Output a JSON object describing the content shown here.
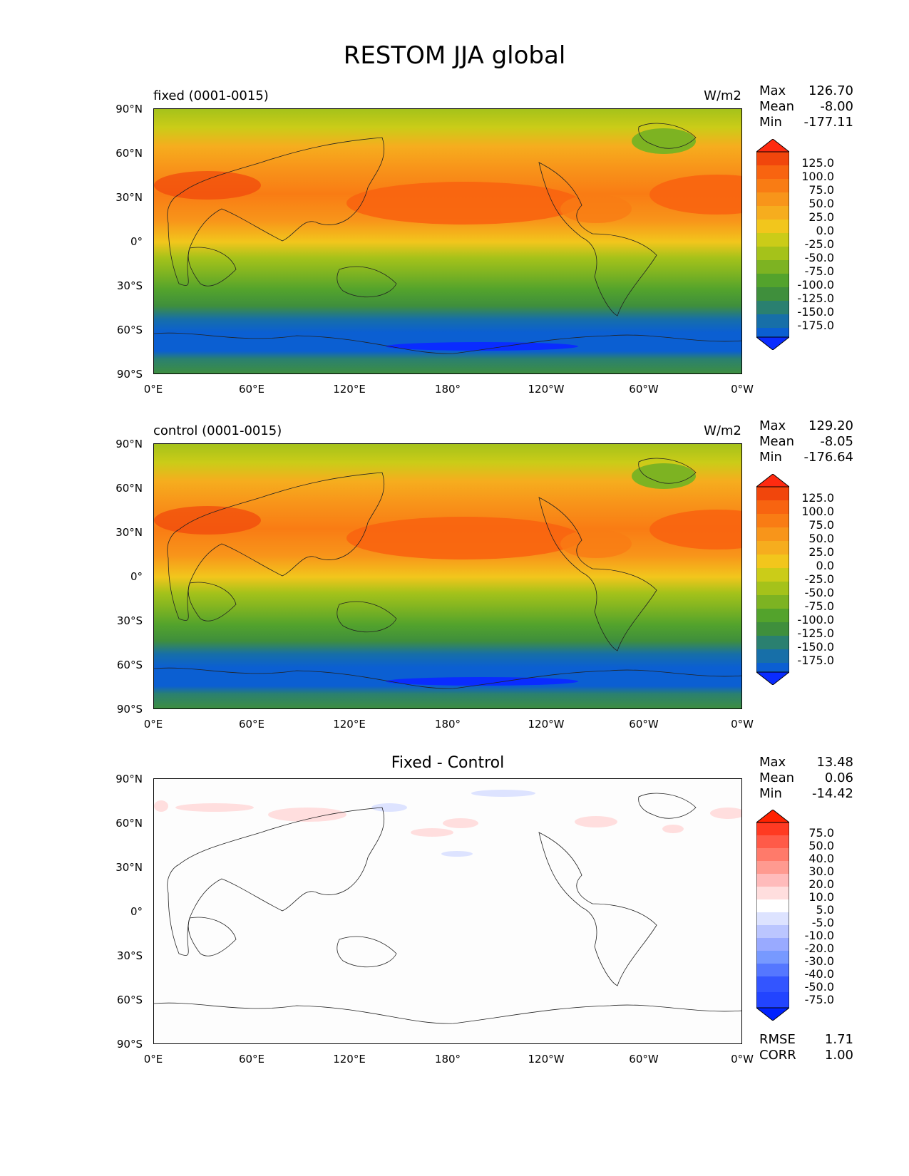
{
  "title": "RESTOM JJA global",
  "panels": [
    {
      "label": "fixed (0001-0015)",
      "units": "W/m2",
      "stats": {
        "max_label": "Max",
        "max": "126.70",
        "mean_label": "Mean",
        "mean": "-8.00",
        "min_label": "Min",
        "min": "-177.11"
      },
      "colorbar_levels": [
        "125.0",
        "100.0",
        "75.0",
        "50.0",
        "25.0",
        "0.0",
        "-25.0",
        "-50.0",
        "-75.0",
        "-100.0",
        "-125.0",
        "-150.0",
        "-175.0"
      ]
    },
    {
      "label": "control (0001-0015)",
      "units": "W/m2",
      "stats": {
        "max_label": "Max",
        "max": "129.20",
        "mean_label": "Mean",
        "mean": "-8.05",
        "min_label": "Min",
        "min": "-176.64"
      },
      "colorbar_levels": [
        "125.0",
        "100.0",
        "75.0",
        "50.0",
        "25.0",
        "0.0",
        "-25.0",
        "-50.0",
        "-75.0",
        "-100.0",
        "-125.0",
        "-150.0",
        "-175.0"
      ]
    },
    {
      "title": "Fixed - Control",
      "stats": {
        "max_label": "Max",
        "max": "13.48",
        "mean_label": "Mean",
        "mean": "0.06",
        "min_label": "Min",
        "min": "-14.42"
      },
      "colorbar_levels": [
        "75.0",
        "50.0",
        "40.0",
        "30.0",
        "20.0",
        "10.0",
        "5.0",
        "-5.0",
        "-10.0",
        "-20.0",
        "-30.0",
        "-40.0",
        "-50.0",
        "-75.0"
      ],
      "rmse_label": "RMSE",
      "rmse": "1.71",
      "corr_label": "CORR",
      "corr": "1.00"
    }
  ],
  "axes": {
    "lat_ticks": [
      "90°N",
      "60°N",
      "30°N",
      "0°",
      "30°S",
      "60°S",
      "90°S"
    ],
    "lon_ticks": [
      "0°E",
      "60°E",
      "120°E",
      "180°",
      "120°W",
      "60°W",
      "0°W"
    ]
  },
  "colors": {
    "field_scale": [
      "#0a2cff",
      "#0b5fd2",
      "#176fa8",
      "#2a8070",
      "#3f8f3c",
      "#53a32c",
      "#7db322",
      "#a5c21a",
      "#cbcc18",
      "#f2c61c",
      "#f6ad1e",
      "#f8951a",
      "#f97c14",
      "#f86410",
      "#f1460c",
      "#ff2a10"
    ],
    "diff_scale": [
      "#0022ff",
      "#3355ff",
      "#5577ff",
      "#7799ff",
      "#99aaff",
      "#bbc6ff",
      "#dde3ff",
      "#ffffff",
      "#ffdede",
      "#ffbbbb",
      "#ff9a90",
      "#ff7a6a",
      "#ff5a48",
      "#ff3a22",
      "#ff2200"
    ]
  }
}
